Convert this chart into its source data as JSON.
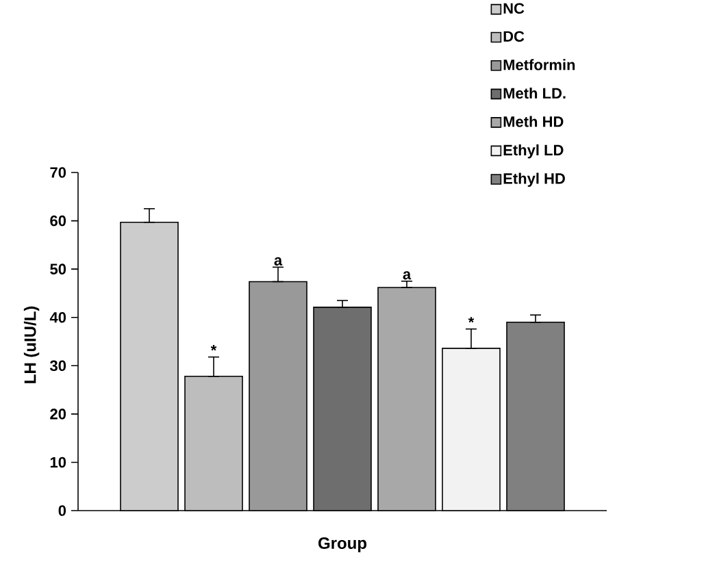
{
  "chart_data": {
    "type": "bar",
    "xlabel": "Group",
    "ylabel": "LH (uIU/L)",
    "categories": [
      null
    ],
    "series": [
      {
        "name": "NC",
        "color": "#cccccc",
        "values": [
          59.7
        ],
        "errors": [
          [
            59.7,
            62.5
          ]
        ]
      },
      {
        "name": "DC",
        "color": "#bdbdbd",
        "values": [
          27.8
        ],
        "errors": [
          [
            27.8,
            31.8
          ]
        ],
        "value_labels": [
          "*"
        ]
      },
      {
        "name": "Metformin",
        "color": "#999999",
        "values": [
          47.4
        ],
        "errors": [
          [
            47.4,
            50.4
          ]
        ],
        "value_labels": [
          "a"
        ]
      },
      {
        "name": "Meth LD.",
        "color": "#6e6e6e",
        "values": [
          42.1
        ],
        "errors": [
          [
            42.1,
            43.5
          ]
        ]
      },
      {
        "name": "Meth HD",
        "color": "#a8a8a8",
        "values": [
          46.2
        ],
        "errors": [
          [
            46.2,
            47.5
          ]
        ],
        "value_labels": [
          "a"
        ]
      },
      {
        "name": "Ethyl LD",
        "color": "#f2f2f2",
        "values": [
          33.6
        ],
        "errors": [
          [
            33.6,
            37.6
          ]
        ],
        "value_labels": [
          "*"
        ]
      },
      {
        "name": "Ethyl HD",
        "color": "#808080",
        "values": [
          39.0
        ],
        "errors": [
          [
            39.0,
            40.5
          ]
        ]
      }
    ],
    "ylim": [
      0,
      70
    ],
    "yticks": [
      0,
      10,
      20,
      30,
      40,
      50,
      60,
      70
    ],
    "legend": "top right"
  }
}
